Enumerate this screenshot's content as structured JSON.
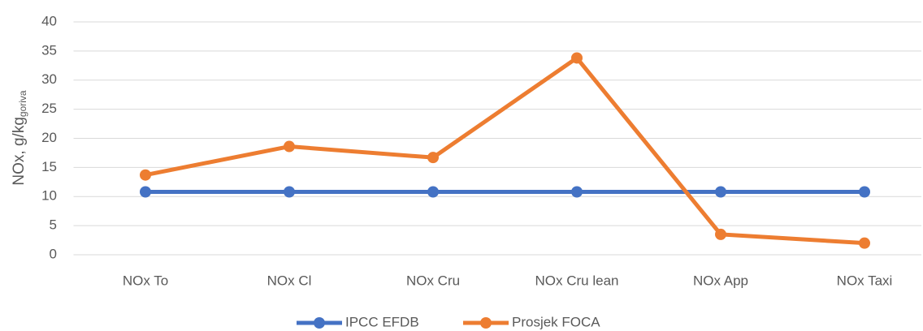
{
  "chart_data": {
    "type": "line",
    "y_label": "NOx, g/kg",
    "y_label_subscript": "goriva",
    "categories": [
      "NOx To",
      "NOx Cl",
      "NOx Cru",
      "NOx Cru lean",
      "NOx App",
      "NOx Taxi"
    ],
    "series": [
      {
        "name": "IPCC EFDB",
        "color": "#4472c4",
        "values": [
          10.8,
          10.8,
          10.8,
          10.8,
          10.8,
          10.8
        ]
      },
      {
        "name": "Prosjek FOCA",
        "color": "#ed7d31",
        "values": [
          13.7,
          18.6,
          16.7,
          33.8,
          3.5,
          2.0
        ]
      }
    ],
    "ylim": [
      0,
      40
    ],
    "yticks": [
      0,
      5,
      10,
      15,
      20,
      25,
      30,
      35,
      40
    ],
    "grid": true,
    "legend": "bottom"
  }
}
